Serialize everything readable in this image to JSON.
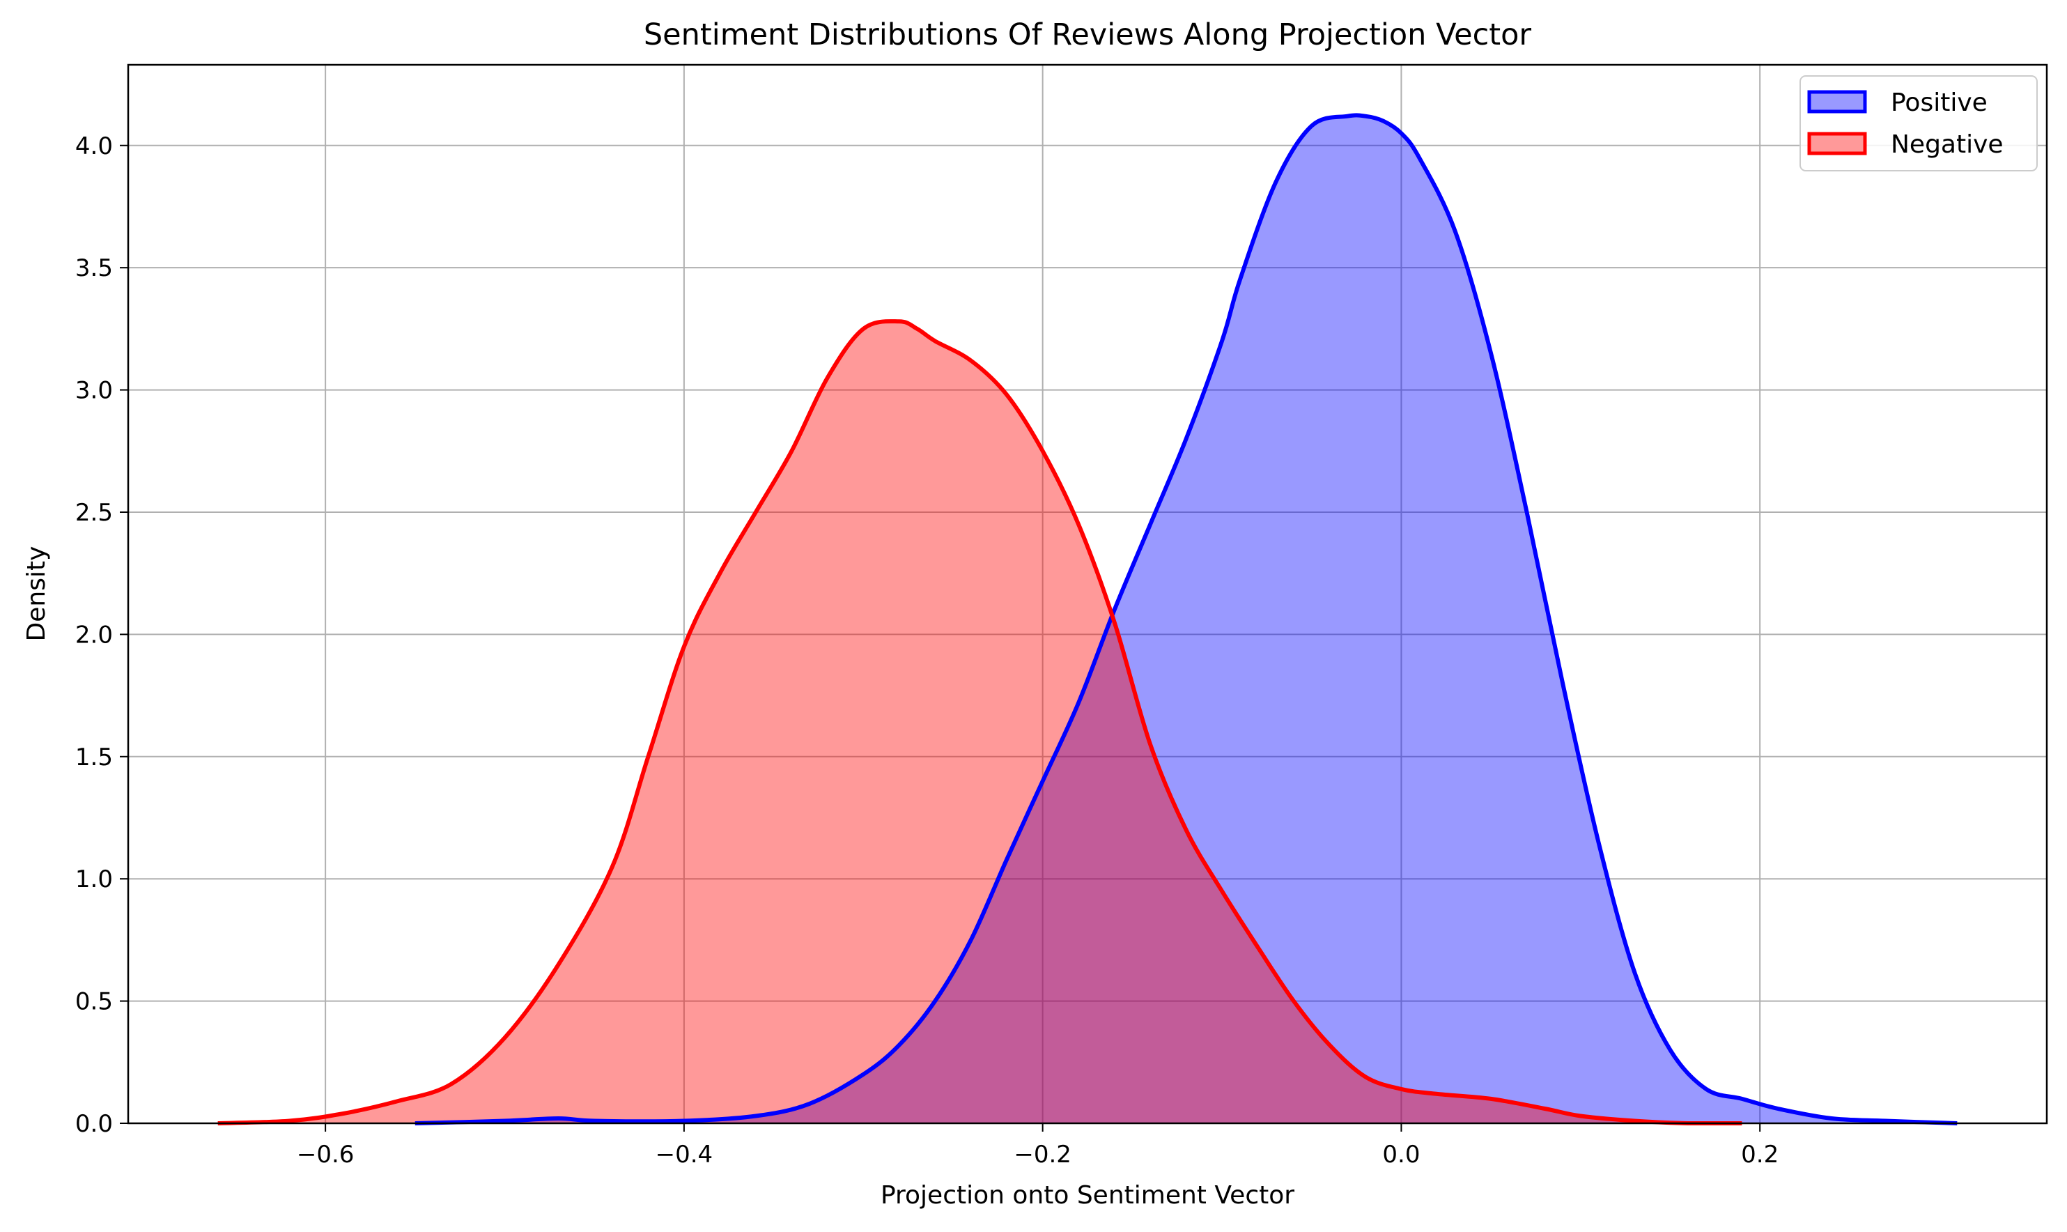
{
  "chart_data": {
    "type": "area",
    "title": "Sentiment Distributions Of Reviews Along Projection Vector",
    "xlabel": "Projection onto Sentiment Vector",
    "ylabel": "Density",
    "xlim": [
      -0.71,
      0.36
    ],
    "ylim": [
      0,
      4.33
    ],
    "grid": true,
    "legend_position": "top-right",
    "x_ticks": [
      -0.6,
      -0.4,
      -0.2,
      0.0,
      0.2
    ],
    "x_tick_labels": [
      "−0.6",
      "−0.4",
      "−0.2",
      "0.0",
      "0.2"
    ],
    "y_ticks": [
      0.0,
      0.5,
      1.0,
      1.5,
      2.0,
      2.5,
      3.0,
      3.5,
      4.0
    ],
    "y_tick_labels": [
      "0.0",
      "0.5",
      "1.0",
      "1.5",
      "2.0",
      "2.5",
      "3.0",
      "3.5",
      "4.0"
    ],
    "series": [
      {
        "name": "Positive",
        "color": "#0000ff",
        "fill": "#9999ff",
        "x": [
          -0.55,
          -0.5,
          -0.47,
          -0.45,
          -0.4,
          -0.36,
          -0.33,
          -0.3,
          -0.28,
          -0.26,
          -0.24,
          -0.22,
          -0.2,
          -0.18,
          -0.16,
          -0.14,
          -0.12,
          -0.1,
          -0.09,
          -0.07,
          -0.05,
          -0.03,
          -0.02,
          -0.01,
          0.0,
          0.01,
          0.03,
          0.05,
          0.07,
          0.09,
          0.11,
          0.13,
          0.15,
          0.17,
          0.19,
          0.21,
          0.24,
          0.27,
          0.31
        ],
        "values": [
          0.0,
          0.01,
          0.02,
          0.01,
          0.01,
          0.03,
          0.08,
          0.2,
          0.32,
          0.5,
          0.75,
          1.08,
          1.4,
          1.72,
          2.1,
          2.45,
          2.8,
          3.2,
          3.45,
          3.85,
          4.08,
          4.12,
          4.12,
          4.1,
          4.05,
          3.95,
          3.65,
          3.15,
          2.5,
          1.8,
          1.15,
          0.62,
          0.3,
          0.14,
          0.1,
          0.06,
          0.02,
          0.01,
          0.0
        ]
      },
      {
        "name": "Negative",
        "color": "#ff0000",
        "fill": "#ff9999",
        "x": [
          -0.66,
          -0.62,
          -0.59,
          -0.56,
          -0.53,
          -0.5,
          -0.47,
          -0.44,
          -0.42,
          -0.4,
          -0.38,
          -0.36,
          -0.34,
          -0.32,
          -0.3,
          -0.28,
          -0.27,
          -0.26,
          -0.24,
          -0.22,
          -0.2,
          -0.18,
          -0.16,
          -0.14,
          -0.12,
          -0.1,
          -0.08,
          -0.06,
          -0.04,
          -0.02,
          0.0,
          0.02,
          0.05,
          0.08,
          0.1,
          0.13,
          0.16,
          0.19
        ],
        "values": [
          0.0,
          0.01,
          0.04,
          0.09,
          0.16,
          0.35,
          0.65,
          1.05,
          1.5,
          1.95,
          2.25,
          2.5,
          2.75,
          3.05,
          3.25,
          3.28,
          3.25,
          3.2,
          3.12,
          2.98,
          2.75,
          2.45,
          2.05,
          1.55,
          1.2,
          0.95,
          0.72,
          0.5,
          0.32,
          0.19,
          0.14,
          0.12,
          0.1,
          0.06,
          0.03,
          0.01,
          0.0,
          0.0
        ]
      }
    ]
  }
}
